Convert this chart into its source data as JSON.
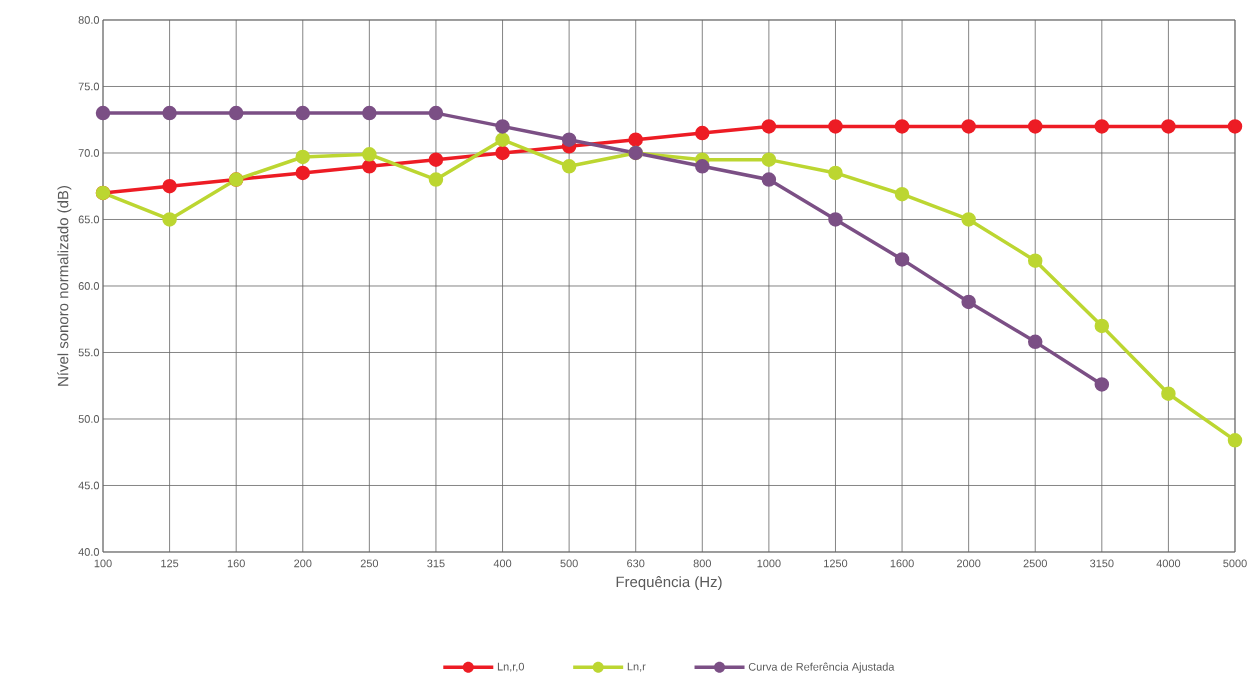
{
  "chart_data": {
    "type": "line",
    "xlabel": "Frequência (Hz)",
    "ylabel": "Nível sonoro normalizado (dB)",
    "categories": [
      "100",
      "125",
      "160",
      "200",
      "250",
      "315",
      "400",
      "500",
      "630",
      "800",
      "1000",
      "1250",
      "1600",
      "2000",
      "2500",
      "3150",
      "4000",
      "5000"
    ],
    "series": [
      {
        "name": "Ln,r,0",
        "color": "#ed1c24",
        "values": [
          67,
          67.5,
          68,
          68.5,
          69,
          69.5,
          70,
          70.5,
          71,
          71.5,
          72,
          72,
          72,
          72,
          72,
          72,
          72,
          72
        ]
      },
      {
        "name": "Ln,r",
        "color": "#bcd631",
        "values": [
          67,
          65,
          68,
          69.7,
          69.9,
          68,
          71,
          69,
          70,
          69.5,
          69.5,
          68.5,
          66.9,
          65,
          61.9,
          57,
          51.9,
          48.4
        ]
      },
      {
        "name": "Curva de Referência Ajustada",
        "color": "#7b4f85",
        "values": [
          73,
          73,
          73,
          73,
          73,
          73,
          72,
          71,
          70,
          69,
          68,
          65,
          62,
          58.8,
          55.8,
          52.6,
          null,
          null
        ]
      }
    ],
    "ylim": [
      40,
      80
    ],
    "yticks": [
      {
        "value": 40,
        "label": "40.0"
      },
      {
        "value": 45,
        "label": "45.0"
      },
      {
        "value": 50,
        "label": "50.0"
      },
      {
        "value": 55,
        "label": "55.0"
      },
      {
        "value": 60,
        "label": "60.0"
      },
      {
        "value": 65,
        "label": "65.0"
      },
      {
        "value": 70,
        "label": "70.0"
      },
      {
        "value": 75,
        "label": "75.0"
      },
      {
        "value": 80,
        "label": "80.0"
      }
    ],
    "grid": true,
    "legend": "bottom",
    "marker": "circle",
    "line_style": "solid"
  }
}
